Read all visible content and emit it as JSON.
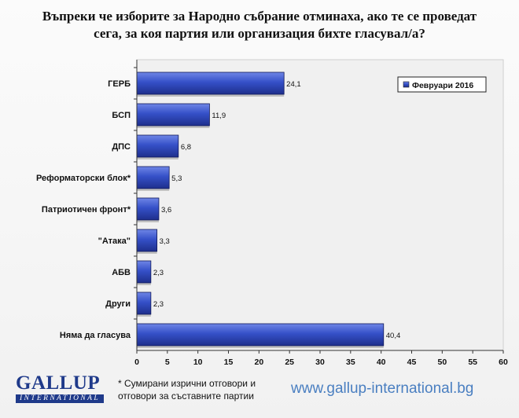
{
  "title": "Въпреки че изборите за Народно събрание отминаха, ако те се проведат сега, за коя партия или организация бихте гласувал/а?",
  "chart_data": {
    "type": "bar",
    "orientation": "horizontal",
    "categories": [
      "ГЕРБ",
      "БСП",
      "ДПС",
      "Реформаторски блок*",
      "Патриотичен фронт*",
      "\"Атака\"",
      "АБВ",
      "Други",
      "Няма да гласува"
    ],
    "series": [
      {
        "name": "Февруари 2016",
        "values": [
          24.1,
          11.9,
          6.8,
          5.3,
          3.6,
          3.3,
          2.3,
          2.3,
          40.4
        ],
        "value_labels": [
          "24,1",
          "11,9",
          "6,8",
          "5,3",
          "3,6",
          "3,3",
          "2,3",
          "2,3",
          "40,4"
        ]
      }
    ],
    "xlim": [
      0,
      60
    ],
    "xticks": [
      0,
      5,
      10,
      15,
      20,
      25,
      30,
      35,
      40,
      45,
      50,
      55,
      60
    ],
    "grid": false,
    "legend_position": "top-right",
    "bar_color": "#3550c8"
  },
  "footnote": "* Сумирани изрични отговори и отговори за съставните партии",
  "logo": {
    "word": "GALLUP",
    "band": "INTERNATIONAL"
  },
  "website": "www.gallup-international.bg"
}
